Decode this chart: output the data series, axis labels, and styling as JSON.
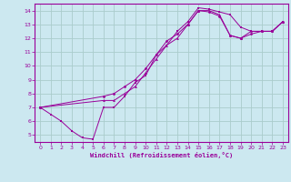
{
  "xlabel": "Windchill (Refroidissement éolien,°C)",
  "bg_color": "#cce8f0",
  "line_color": "#990099",
  "grid_color": "#aacccc",
  "xlim": [
    -0.5,
    23.5
  ],
  "ylim": [
    4.5,
    14.5
  ],
  "xticks": [
    0,
    1,
    2,
    3,
    4,
    5,
    6,
    7,
    8,
    9,
    10,
    11,
    12,
    13,
    14,
    15,
    16,
    17,
    18,
    19,
    20,
    21,
    22,
    23
  ],
  "yticks": [
    5,
    6,
    7,
    8,
    9,
    10,
    11,
    12,
    13,
    14
  ],
  "series1_x": [
    0,
    1,
    2,
    3,
    4,
    5,
    6,
    7,
    8,
    9,
    10,
    11,
    12,
    13,
    14,
    15,
    16,
    17,
    18,
    19,
    20,
    21,
    22,
    23
  ],
  "series1_y": [
    7.0,
    6.5,
    6.0,
    5.3,
    4.8,
    4.7,
    7.0,
    7.0,
    7.8,
    8.8,
    9.3,
    10.8,
    11.5,
    12.5,
    13.2,
    14.2,
    14.1,
    13.9,
    13.7,
    12.8,
    12.5,
    12.5,
    12.5,
    13.2
  ],
  "series2_x": [
    0,
    6,
    7,
    8,
    9,
    10,
    11,
    12,
    13,
    14,
    15,
    16,
    17,
    18,
    19,
    20,
    21,
    22,
    23
  ],
  "series2_y": [
    7.0,
    7.8,
    8.0,
    8.5,
    9.0,
    9.8,
    10.8,
    11.8,
    12.3,
    13.0,
    14.0,
    13.9,
    13.6,
    12.2,
    12.0,
    12.3,
    12.5,
    12.5,
    13.2
  ],
  "series3_x": [
    0,
    6,
    7,
    8,
    9,
    10,
    11,
    12,
    13,
    14,
    15,
    16,
    17,
    18,
    19,
    20,
    21,
    22,
    23
  ],
  "series3_y": [
    7.0,
    7.5,
    7.5,
    8.0,
    8.5,
    9.5,
    10.5,
    11.5,
    12.0,
    13.0,
    14.0,
    14.0,
    13.7,
    12.2,
    12.0,
    12.5,
    12.5,
    12.5,
    13.2
  ]
}
